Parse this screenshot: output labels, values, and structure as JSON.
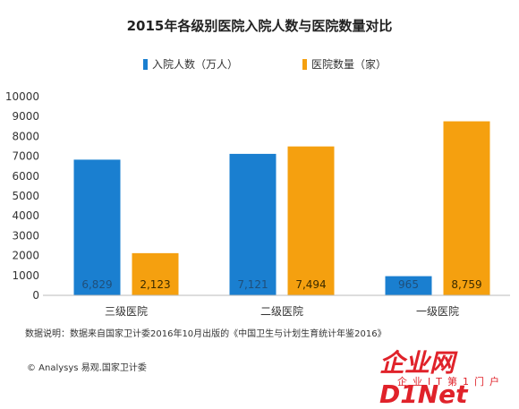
{
  "chart_data": {
    "type": "bar",
    "title": "2015年各级别医院入院人数与医院数量对比",
    "categories": [
      "三级医院",
      "二级医院",
      "一级医院"
    ],
    "series": [
      {
        "name": "入院人数（万人）",
        "color": "#1a7fd0",
        "values": [
          6829,
          7121,
          965
        ],
        "labels": [
          "6,829",
          "7,121",
          "965"
        ]
      },
      {
        "name": "医院数量（家）",
        "color": "#f5a00f",
        "values": [
          2123,
          7494,
          8759
        ],
        "labels": [
          "2,123",
          "7,494",
          "8,759"
        ]
      }
    ],
    "ylim": [
      0,
      10000
    ],
    "yticks": [
      "0",
      "1000",
      "2000",
      "3000",
      "4000",
      "5000",
      "6000",
      "7000",
      "8000",
      "9000",
      "10000"
    ],
    "grid": false,
    "legend": "top"
  },
  "note": "数据说明：数据来自国家卫计委2016年10月出版的《中国卫生与计划生育统计年鉴2016》",
  "footer": {
    "source": "© Analysys 易观.国家卫计委",
    "brand": "企业网D1Net",
    "brand_sub": "企业IT第1门户"
  }
}
